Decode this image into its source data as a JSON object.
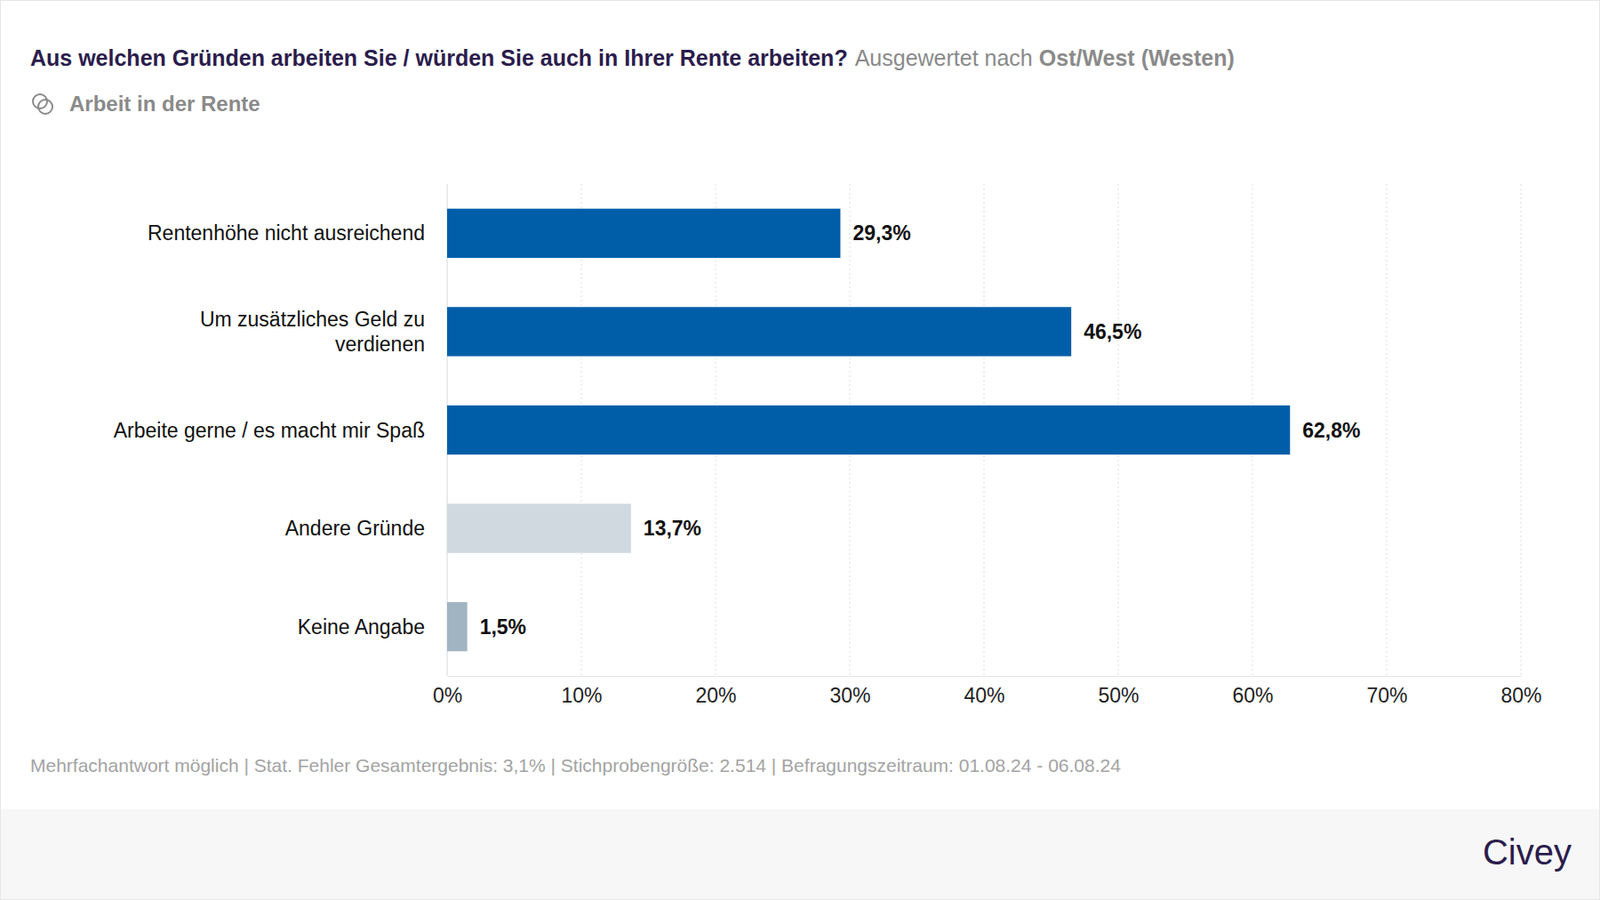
{
  "chart_data": {
    "type": "bar",
    "orientation": "horizontal",
    "title": "Aus welchen Gründen arbeiten Sie / würden Sie auch in Ihrer Rente arbeiten?",
    "subtitle": "Arbeit in der Rente",
    "annotations": [
      "Ausgewertet nach",
      "Ost/West (Westen)",
      "Mehrfachantwort möglich | Stat. Fehler Gesamtergebnis: 3,1% | Stichprobengröße: 2.514 | Befragungszeitraum: 01.08.24 - 06.08.24",
      "Civey"
    ],
    "categories": [
      "Rentenhöhe nicht ausreichend",
      "Um zusätzliches Geld zu verdienen",
      "Arbeite gerne / es macht mir Spaß",
      "Andere Gründe",
      "Keine Angabe"
    ],
    "values": [
      29.3,
      46.5,
      62.8,
      13.7,
      1.5
    ],
    "value_labels": [
      "29,3%",
      "46,5%",
      "62,8%",
      "13,7%",
      "1,5%"
    ],
    "colors": [
      "#005ea8",
      "#005ea8",
      "#005ea8",
      "#d0d9e0",
      "#a1b4c1"
    ],
    "xlim": [
      0,
      80
    ],
    "xticks": [
      {
        "value": 0,
        "label": "0%"
      },
      {
        "value": 10,
        "label": "10%"
      },
      {
        "value": 20,
        "label": "20%"
      },
      {
        "value": 30,
        "label": "30%"
      },
      {
        "value": 40,
        "label": "40%"
      },
      {
        "value": 50,
        "label": "50%"
      },
      {
        "value": 60,
        "label": "60%"
      },
      {
        "value": 70,
        "label": "70%"
      },
      {
        "value": 80,
        "label": "80%"
      }
    ],
    "grid": true,
    "data_labels": true
  }
}
